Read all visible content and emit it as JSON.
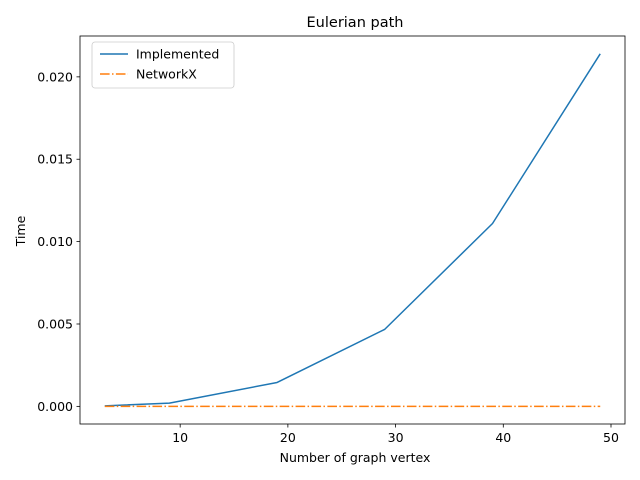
{
  "chart_data": {
    "type": "line",
    "title": "Eulerian path",
    "xlabel": "Number of graph vertex",
    "ylabel": "Time",
    "xlim": [
      0.7,
      51.3
    ],
    "ylim": [
      -0.00107,
      0.02248
    ],
    "xticks": [
      10,
      20,
      30,
      40,
      50
    ],
    "xtick_labels": [
      "10",
      "20",
      "30",
      "40",
      "50"
    ],
    "yticks": [
      0.0,
      0.005,
      0.01,
      0.015,
      0.02
    ],
    "ytick_labels": [
      "0.000",
      "0.005",
      "0.010",
      "0.015",
      "0.020"
    ],
    "grid": false,
    "legend_position": "top-left",
    "series": [
      {
        "name": "Implemented",
        "color": "#1f77b4",
        "style": "solid",
        "x": [
          3,
          9,
          19,
          29,
          39,
          49
        ],
        "y": [
          3e-05,
          0.0002,
          0.00145,
          0.00468,
          0.0111,
          0.0214
        ]
      },
      {
        "name": "NetworkX",
        "color": "#ff7f0e",
        "style": "dashdot",
        "x": [
          3,
          9,
          19,
          29,
          39,
          49
        ],
        "y": [
          0.0,
          0.0,
          0.0,
          0.0,
          0.0,
          0.0
        ]
      }
    ]
  }
}
